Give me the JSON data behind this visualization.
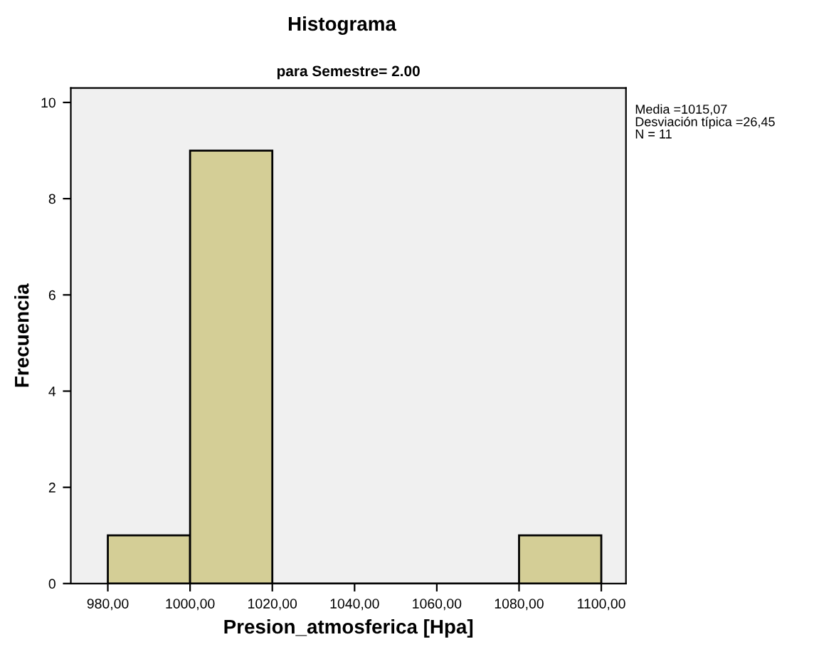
{
  "chart_data": {
    "type": "histogram",
    "title": "Histograma",
    "subtitle": "para Semestre= 2.00",
    "xlabel": "Presion_atmosferica [Hpa]",
    "ylabel": "Frecuencia",
    "bins": [
      980,
      1000,
      1020,
      1040,
      1060,
      1080,
      1100
    ],
    "values": [
      1,
      9,
      0,
      0,
      0,
      1
    ],
    "color": "#d4ce96",
    "xlim": [
      971,
      1106
    ],
    "ylim": [
      0,
      10.3
    ],
    "xticks": [
      {
        "value": 980,
        "label": "980,00"
      },
      {
        "value": 1000,
        "label": "1000,00"
      },
      {
        "value": 1020,
        "label": "1020,00"
      },
      {
        "value": 1040,
        "label": "1040,00"
      },
      {
        "value": 1060,
        "label": "1060,00"
      },
      {
        "value": 1080,
        "label": "1080,00"
      },
      {
        "value": 1100,
        "label": "1100,00"
      }
    ],
    "yticks": [
      0,
      2,
      4,
      6,
      8,
      10
    ],
    "grid": false,
    "legend": false,
    "annotations": [
      "Media =1015,07",
      "Desviación típica =26,45",
      "N = 11"
    ]
  }
}
